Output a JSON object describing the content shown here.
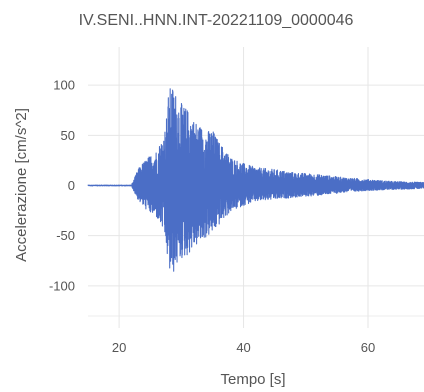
{
  "chart_data": {
    "type": "line",
    "title": "IV.SENI..HNN.INT-20221109_0000046",
    "xlabel": "Tempo [s]",
    "ylabel": "Accelerazione [cm/s^2]",
    "xlim": [
      15,
      69
    ],
    "ylim": [
      -142,
      138
    ],
    "x_ticks": [
      20,
      40,
      60
    ],
    "y_ticks": [
      100,
      50,
      0,
      -50,
      -100
    ],
    "x_tick_labels": [
      "20",
      "40",
      "60"
    ],
    "y_tick_labels": [
      "100",
      "50",
      "0",
      "-50",
      "-100"
    ],
    "grid": true,
    "legend": "none",
    "series_color": "#4b6ec6",
    "series": [
      {
        "envelope": {
          "t": [
            15,
            22,
            22.4,
            23,
            24,
            25,
            26,
            27,
            27.5,
            28,
            28.5,
            29,
            29.5,
            30,
            31,
            32,
            33,
            34,
            35,
            36,
            37,
            38,
            40,
            42,
            45,
            48,
            52,
            56,
            60,
            64,
            69
          ],
          "amp_pos": [
            1,
            1,
            6,
            16,
            24,
            30,
            35,
            48,
            62,
            96,
            100,
            94,
            86,
            82,
            76,
            66,
            60,
            54,
            56,
            44,
            36,
            28,
            22,
            18,
            16,
            13,
            11,
            8,
            6,
            4,
            3
          ],
          "amp_neg": [
            1,
            1,
            6,
            14,
            22,
            28,
            32,
            44,
            60,
            86,
            92,
            84,
            78,
            74,
            70,
            62,
            58,
            52,
            48,
            40,
            32,
            26,
            20,
            16,
            14,
            12,
            10,
            7,
            5,
            4,
            3
          ]
        }
      }
    ]
  }
}
